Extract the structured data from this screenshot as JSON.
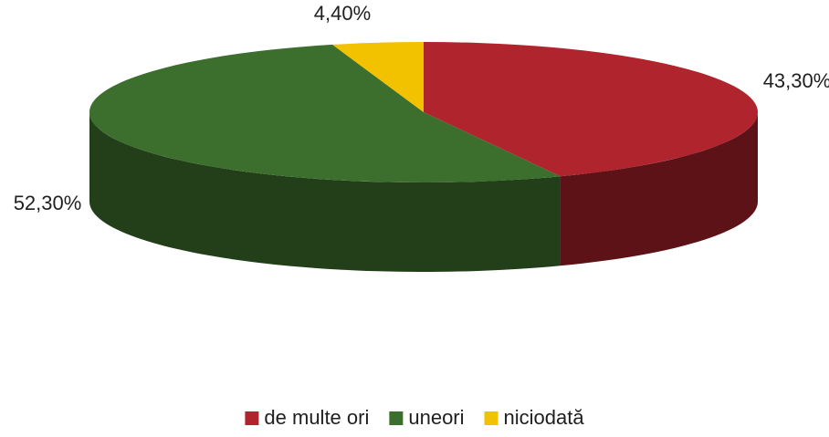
{
  "chart_data": {
    "type": "pie",
    "style": "3d",
    "title": "",
    "categories": [
      "de multe ori",
      "uneori",
      "niciodată"
    ],
    "values": [
      43.3,
      52.3,
      4.4
    ],
    "data_labels": [
      "43,30%",
      "52,30%",
      "4,40%"
    ],
    "colors": [
      "#b0242d",
      "#3c6e2d",
      "#f2c100"
    ],
    "side_colors": [
      "#5c1217",
      "#223f19",
      "#8a6e00"
    ],
    "legend_position": "bottom"
  }
}
